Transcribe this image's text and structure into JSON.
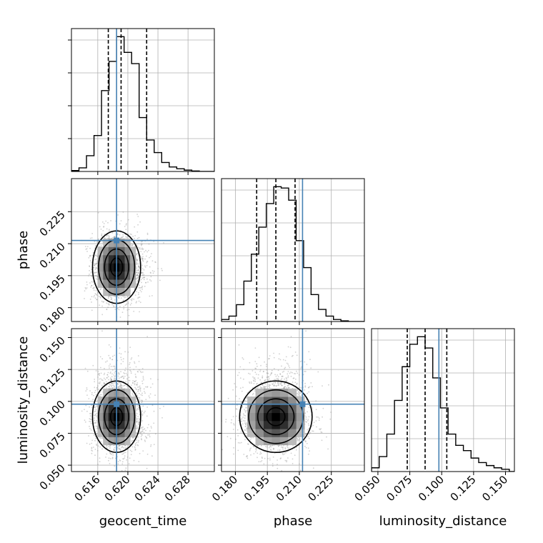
{
  "chart_data": {
    "type": "scatter",
    "subtype": "corner-plot",
    "grid": true,
    "parameters": [
      "geocent_time",
      "phase",
      "luminosity_distance"
    ],
    "truths": {
      "geocent_time": 0.6185,
      "phase": 0.2115,
      "luminosity_distance": 0.0978
    },
    "quantiles": {
      "geocent_time": [
        0.6174,
        0.6191,
        0.6225
      ],
      "phase": [
        0.19,
        0.199,
        0.208
      ],
      "luminosity_distance": [
        0.073,
        0.087,
        0.104
      ]
    },
    "axes": {
      "geocent_time": {
        "label": "geocent_time",
        "lim": [
          0.6125,
          0.6315
        ],
        "ticks": [
          0.616,
          0.62,
          0.624,
          0.628
        ],
        "tick_labels": [
          "0.616",
          "0.620",
          "0.624",
          "0.628"
        ]
      },
      "phase": {
        "label": "phase",
        "lim": [
          0.1735,
          0.2405
        ],
        "ticks": [
          0.18,
          0.195,
          0.21,
          0.225
        ],
        "tick_labels": [
          "0.180",
          "0.195",
          "0.210",
          "0.225"
        ]
      },
      "luminosity_distance": {
        "label": "luminosity_distance",
        "lim": [
          0.045,
          0.157
        ],
        "ticks": [
          0.05,
          0.075,
          0.1,
          0.125,
          0.15
        ],
        "tick_labels": [
          "0.050",
          "0.075",
          "0.100",
          "0.125",
          "0.150"
        ]
      }
    },
    "histograms": {
      "geocent_time": {
        "bins": [
          0.6125,
          0.6135,
          0.6145,
          0.6155,
          0.6165,
          0.6175,
          0.6185,
          0.6195,
          0.6205,
          0.6215,
          0.6225,
          0.6235,
          0.6245,
          0.6255,
          0.6265,
          0.6275,
          0.6285,
          0.6295,
          0.6305,
          0.6315
        ],
        "counts": [
          2,
          8,
          35,
          80,
          180,
          245,
          300,
          265,
          240,
          120,
          70,
          42,
          20,
          10,
          6,
          3,
          1,
          0,
          0
        ]
      },
      "phase": {
        "bins": [
          0.1735,
          0.177,
          0.1805,
          0.184,
          0.1875,
          0.191,
          0.1945,
          0.198,
          0.2015,
          0.205,
          0.2085,
          0.212,
          0.2155,
          0.219,
          0.2225,
          0.226,
          0.2295,
          0.233,
          0.2365,
          0.2405
        ],
        "counts": [
          3,
          8,
          25,
          60,
          100,
          140,
          175,
          200,
          198,
          180,
          120,
          80,
          40,
          18,
          8,
          3,
          1,
          0,
          0
        ]
      },
      "luminosity_distance": {
        "bins": [
          0.045,
          0.051,
          0.057,
          0.063,
          0.069,
          0.075,
          0.081,
          0.087,
          0.093,
          0.099,
          0.105,
          0.111,
          0.117,
          0.123,
          0.129,
          0.135,
          0.141,
          0.147,
          0.153,
          0.157
        ],
        "counts": [
          5,
          20,
          50,
          95,
          140,
          170,
          180,
          165,
          125,
          85,
          50,
          35,
          28,
          18,
          12,
          8,
          5,
          3,
          0
        ]
      }
    },
    "samples": {
      "count": 1800,
      "center": {
        "geocent_time": 0.6185,
        "phase": 0.199,
        "luminosity_distance": 0.088
      },
      "spread": {
        "geocent_time": 0.0016,
        "phase": 0.0085,
        "luminosity_distance": 0.014
      }
    },
    "colors": {
      "truth": "#4682b4",
      "hist": "#000000",
      "quantile": "#000000",
      "grid": "#b0b0b0",
      "density_dark": "#000000"
    }
  }
}
